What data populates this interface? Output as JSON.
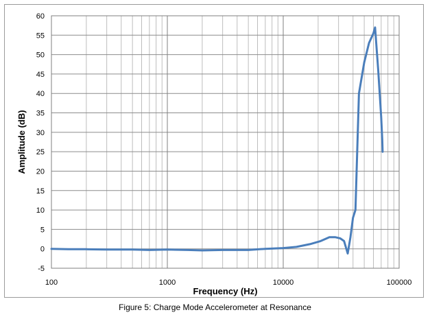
{
  "chart_data": {
    "type": "line",
    "xscale": "log",
    "xlim": [
      100,
      100000
    ],
    "ylim": [
      -5,
      60
    ],
    "xticks": [
      100,
      1000,
      10000,
      100000
    ],
    "xtick_labels": [
      "100",
      "1000",
      "10000",
      "100000"
    ],
    "yticks": [
      -5,
      0,
      5,
      10,
      15,
      20,
      25,
      30,
      35,
      40,
      45,
      50,
      55,
      60
    ],
    "ytick_labels": [
      "-5",
      "0",
      "5",
      "10",
      "15",
      "20",
      "25",
      "30",
      "35",
      "40",
      "45",
      "50",
      "55",
      "60"
    ],
    "xlabel": "Frequency (Hz)",
    "ylabel": "Amplitude (dB)",
    "grid": true,
    "legend": "none",
    "series": [
      {
        "color": "#4a7ebb",
        "x": [
          100,
          140,
          200,
          300,
          500,
          700,
          1000,
          1500,
          2000,
          3000,
          5000,
          7000,
          10000,
          13000,
          17000,
          21000,
          25000,
          28000,
          31000,
          33500,
          36000,
          38000,
          40000,
          42000,
          45000,
          50000,
          55000,
          60000,
          62000,
          66000,
          70000,
          71500,
          72000
        ],
        "y": [
          0,
          -0.1,
          -0.1,
          -0.2,
          -0.2,
          -0.3,
          -0.2,
          -0.3,
          -0.4,
          -0.3,
          -0.3,
          0,
          0.2,
          0.5,
          1.2,
          2.0,
          3.0,
          3.0,
          2.7,
          2.0,
          -1.2,
          3.0,
          8.0,
          10.0,
          40.0,
          48.0,
          53.0,
          55.5,
          57.0,
          46.0,
          34.0,
          28.0,
          25.0
        ]
      }
    ]
  },
  "caption": "Figure 5: Charge Mode Accelerometer at Resonance"
}
